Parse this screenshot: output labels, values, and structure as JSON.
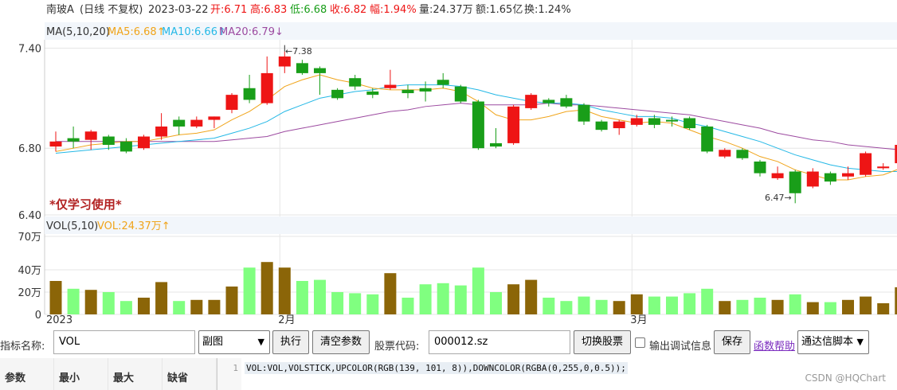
{
  "header": {
    "name": "南玻A",
    "period": "(日线 不复权)",
    "date": "2023-03-22",
    "open": "开:6.71",
    "high": "高:6.83",
    "low": "低:6.68",
    "close": "收:6.82",
    "change": "幅:1.94%",
    "volume": "量:24.37万",
    "amount": "额:1.65亿",
    "turnover": "换:1.24%"
  },
  "ma_legend": {
    "title": "MA(5,10,20)",
    "ma5": "MA5:6.68↑",
    "ma10": "MA10:6.66↑",
    "ma20": "MA20:6.79↓"
  },
  "vol_legend": {
    "title": "VOL(5,10)",
    "vol": "VOL:24.37万↑"
  },
  "watermark_text": "*仅学习使用*",
  "price_axis": [
    "7.40",
    "6.80",
    "6.40"
  ],
  "vol_axis": [
    "70万",
    "40万",
    "20万",
    "0"
  ],
  "date_axis": [
    "2023",
    "2月",
    "3月"
  ],
  "annotations": {
    "high": "←7.38",
    "low": "6.47→"
  },
  "colors": {
    "up": "#ee1515",
    "down": "#199e19",
    "vol_up": "#8b6508",
    "vol_down": "#80ff80",
    "ma5": "#f0a41a",
    "ma10": "#24b8e6",
    "ma20": "#9c4aa0",
    "legend_bg": "#f2f6fb",
    "grid": "#e6e6e6"
  },
  "chart_data": {
    "type": "candlestick",
    "candles": [
      {
        "o": 6.81,
        "c": 6.84,
        "h": 6.9,
        "l": 6.78,
        "v": 30
      },
      {
        "o": 6.86,
        "c": 6.84,
        "h": 6.93,
        "l": 6.8,
        "v": 23
      },
      {
        "o": 6.85,
        "c": 6.9,
        "h": 6.91,
        "l": 6.79,
        "v": 22
      },
      {
        "o": 6.87,
        "c": 6.82,
        "h": 6.88,
        "l": 6.79,
        "v": 20
      },
      {
        "o": 6.84,
        "c": 6.78,
        "h": 6.86,
        "l": 6.77,
        "v": 12
      },
      {
        "o": 6.8,
        "c": 6.87,
        "h": 6.88,
        "l": 6.79,
        "v": 15
      },
      {
        "o": 6.87,
        "c": 6.93,
        "h": 7.01,
        "l": 6.85,
        "v": 29
      },
      {
        "o": 6.97,
        "c": 6.93,
        "h": 6.99,
        "l": 6.88,
        "v": 12
      },
      {
        "o": 6.93,
        "c": 6.97,
        "h": 6.99,
        "l": 6.92,
        "v": 13
      },
      {
        "o": 6.97,
        "c": 6.99,
        "h": 6.99,
        "l": 6.92,
        "v": 13
      },
      {
        "o": 7.03,
        "c": 7.12,
        "h": 7.13,
        "l": 7.01,
        "v": 25
      },
      {
        "o": 7.16,
        "c": 7.09,
        "h": 7.24,
        "l": 7.07,
        "v": 42
      },
      {
        "o": 7.07,
        "c": 7.25,
        "h": 7.35,
        "l": 7.06,
        "v": 47
      },
      {
        "o": 7.29,
        "c": 7.35,
        "h": 7.38,
        "l": 7.25,
        "v": 42
      },
      {
        "o": 7.31,
        "c": 7.25,
        "h": 7.33,
        "l": 7.24,
        "v": 30
      },
      {
        "o": 7.28,
        "c": 7.25,
        "h": 7.29,
        "l": 7.12,
        "v": 31
      },
      {
        "o": 7.15,
        "c": 7.1,
        "h": 7.16,
        "l": 7.09,
        "v": 20
      },
      {
        "o": 7.22,
        "c": 7.17,
        "h": 7.24,
        "l": 7.15,
        "v": 19
      },
      {
        "o": 7.14,
        "c": 7.12,
        "h": 7.16,
        "l": 7.1,
        "v": 18
      },
      {
        "o": 7.16,
        "c": 7.18,
        "h": 7.27,
        "l": 7.15,
        "v": 37
      },
      {
        "o": 7.15,
        "c": 7.13,
        "h": 7.18,
        "l": 7.1,
        "v": 15
      },
      {
        "o": 7.16,
        "c": 7.14,
        "h": 7.2,
        "l": 7.08,
        "v": 27
      },
      {
        "o": 7.21,
        "c": 7.18,
        "h": 7.25,
        "l": 7.16,
        "v": 28
      },
      {
        "o": 7.17,
        "c": 7.08,
        "h": 7.18,
        "l": 7.07,
        "v": 26
      },
      {
        "o": 7.08,
        "c": 6.8,
        "h": 7.09,
        "l": 6.79,
        "v": 42
      },
      {
        "o": 6.83,
        "c": 6.81,
        "h": 6.92,
        "l": 6.8,
        "v": 20
      },
      {
        "o": 6.83,
        "c": 7.05,
        "h": 7.06,
        "l": 6.82,
        "v": 27
      },
      {
        "o": 7.04,
        "c": 7.12,
        "h": 7.13,
        "l": 7.03,
        "v": 31
      },
      {
        "o": 7.09,
        "c": 7.07,
        "h": 7.1,
        "l": 7.05,
        "v": 15
      },
      {
        "o": 7.1,
        "c": 7.05,
        "h": 7.12,
        "l": 7.04,
        "v": 12
      },
      {
        "o": 7.06,
        "c": 6.96,
        "h": 7.07,
        "l": 6.94,
        "v": 16
      },
      {
        "o": 6.96,
        "c": 6.91,
        "h": 6.97,
        "l": 6.9,
        "v": 13
      },
      {
        "o": 6.92,
        "c": 6.96,
        "h": 6.97,
        "l": 6.88,
        "v": 12
      },
      {
        "o": 6.94,
        "c": 6.98,
        "h": 7.0,
        "l": 6.93,
        "v": 18
      },
      {
        "o": 6.98,
        "c": 6.94,
        "h": 7.0,
        "l": 6.92,
        "v": 16
      },
      {
        "o": 6.97,
        "c": 6.96,
        "h": 6.99,
        "l": 6.93,
        "v": 16
      },
      {
        "o": 6.98,
        "c": 6.92,
        "h": 6.99,
        "l": 6.91,
        "v": 19
      },
      {
        "o": 6.93,
        "c": 6.78,
        "h": 6.94,
        "l": 6.77,
        "v": 23
      },
      {
        "o": 6.75,
        "c": 6.79,
        "h": 6.8,
        "l": 6.74,
        "v": 12
      },
      {
        "o": 6.79,
        "c": 6.74,
        "h": 6.8,
        "l": 6.73,
        "v": 13
      },
      {
        "o": 6.72,
        "c": 6.65,
        "h": 6.73,
        "l": 6.63,
        "v": 15
      },
      {
        "o": 6.62,
        "c": 6.65,
        "h": 6.69,
        "l": 6.61,
        "v": 13
      },
      {
        "o": 6.66,
        "c": 6.53,
        "h": 6.67,
        "l": 6.47,
        "v": 18
      },
      {
        "o": 6.57,
        "c": 6.66,
        "h": 6.68,
        "l": 6.56,
        "v": 11
      },
      {
        "o": 6.65,
        "c": 6.6,
        "h": 6.66,
        "l": 6.58,
        "v": 11
      },
      {
        "o": 6.63,
        "c": 6.65,
        "h": 6.69,
        "l": 6.61,
        "v": 13
      },
      {
        "o": 6.64,
        "c": 6.77,
        "h": 6.78,
        "l": 6.63,
        "v": 16
      },
      {
        "o": 6.68,
        "c": 6.69,
        "h": 6.71,
        "l": 6.67,
        "v": 10
      },
      {
        "o": 6.71,
        "c": 6.82,
        "h": 6.83,
        "l": 6.68,
        "v": 24.37
      }
    ],
    "ma5": [
      6.78,
      6.8,
      6.82,
      6.83,
      6.84,
      6.84,
      6.86,
      6.88,
      6.89,
      6.91,
      6.97,
      7.02,
      7.09,
      7.17,
      7.21,
      7.24,
      7.21,
      7.19,
      7.16,
      7.15,
      7.15,
      7.15,
      7.16,
      7.14,
      7.08,
      7.0,
      6.97,
      6.97,
      6.99,
      7.02,
      7.03,
      6.99,
      6.97,
      6.95,
      6.96,
      6.95,
      6.91,
      6.87,
      6.84,
      6.8,
      6.75,
      6.72,
      6.67,
      6.64,
      6.61,
      6.61,
      6.63,
      6.64,
      6.68
    ],
    "ma10": [
      6.77,
      6.78,
      6.79,
      6.8,
      6.81,
      6.82,
      6.83,
      6.84,
      6.85,
      6.86,
      6.89,
      6.92,
      6.96,
      7.02,
      7.06,
      7.1,
      7.12,
      7.14,
      7.15,
      7.17,
      7.18,
      7.18,
      7.18,
      7.17,
      7.15,
      7.12,
      7.1,
      7.08,
      7.07,
      7.07,
      7.06,
      7.03,
      7.01,
      6.99,
      6.99,
      6.98,
      6.95,
      6.93,
      6.9,
      6.87,
      6.84,
      6.8,
      6.76,
      6.73,
      6.7,
      6.68,
      6.67,
      6.66,
      6.66
    ],
    "ma20": [
      6.84,
      6.84,
      6.84,
      6.84,
      6.84,
      6.84,
      6.84,
      6.84,
      6.84,
      6.84,
      6.85,
      6.86,
      6.87,
      6.9,
      6.92,
      6.94,
      6.96,
      6.98,
      7.0,
      7.02,
      7.03,
      7.05,
      7.06,
      7.07,
      7.06,
      7.06,
      7.06,
      7.06,
      7.07,
      7.06,
      7.06,
      7.05,
      7.04,
      7.03,
      7.02,
      7.01,
      7.0,
      6.98,
      6.96,
      6.94,
      6.92,
      6.89,
      6.87,
      6.85,
      6.84,
      6.82,
      6.81,
      6.8,
      6.79
    ],
    "price_ylim": [
      6.4,
      7.45
    ],
    "vol_ylim": [
      0,
      70
    ]
  },
  "toolbar": {
    "indicator_label": "指标名称:",
    "indicator_value": "VOL",
    "window_select": "副图",
    "run_button": "执行",
    "clear_button": "清空参数",
    "stock_label": "股票代码:",
    "stock_value": "000012.sz",
    "switch_button": "切换股票",
    "debug_label": "输出调试信息",
    "save_button": "保存",
    "help_link": "函数帮助",
    "script_select": "通达信脚本"
  },
  "params_table": {
    "headers": [
      "参数",
      "最小",
      "最大",
      "缺省"
    ]
  },
  "code_editor": {
    "line_number": "1",
    "code": "VOL:VOL,VOLSTICK,UPCOLOR(RGB(139, 101, 8)),DOWNCOLOR(RGBA(0,255,0,0.5));"
  },
  "credit": "CSDN @HQChart"
}
